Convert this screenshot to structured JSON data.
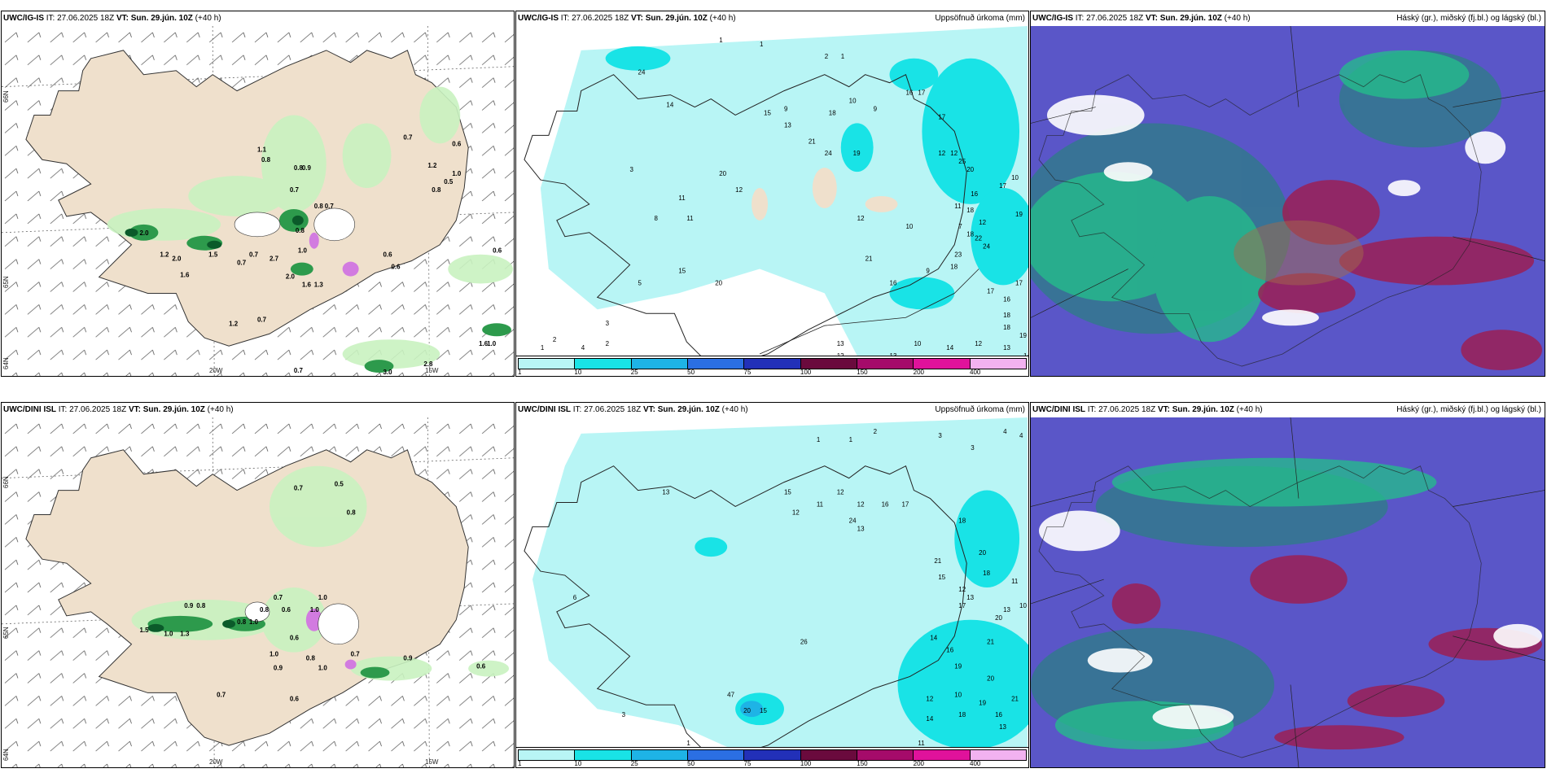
{
  "panels": [
    {
      "id": "top-left",
      "model": "UWC/IG-IS",
      "it_label": "IT:",
      "it": "27.06.2025 18Z",
      "vt_label": "VT:",
      "vt": "Sun. 29.jún. 10Z",
      "lead": "(+40 h)",
      "right": ""
    },
    {
      "id": "top-mid",
      "model": "UWC/IG-IS",
      "it_label": "IT:",
      "it": "27.06.2025 18Z",
      "vt_label": "VT:",
      "vt": "Sun. 29.jún. 10Z",
      "lead": "(+40 h)",
      "right": "Uppsöfnuð úrkoma (mm)"
    },
    {
      "id": "top-right",
      "model": "UWC/IG-IS",
      "it_label": "IT:",
      "it": "27.06.2025 18Z",
      "vt_label": "VT:",
      "vt": "Sun. 29.jún. 10Z",
      "lead": "(+40 h)",
      "right": "Háský (gr.), miðský (fj.bl.) og lágský (bl.)"
    },
    {
      "id": "bottom-left",
      "model": "UWC/DINI ISL",
      "it_label": "IT:",
      "it": "27.06.2025 18Z",
      "vt_label": "VT:",
      "vt": "Sun. 29.jún. 10Z",
      "lead": "(+40 h)",
      "right": ""
    },
    {
      "id": "bottom-mid",
      "model": "UWC/DINI ISL",
      "it_label": "IT:",
      "it": "27.06.2025 18Z",
      "vt_label": "VT:",
      "vt": "Sun. 29.jún. 10Z",
      "lead": "(+40 h)",
      "right": "Uppsöfnuð úrkoma (mm)"
    },
    {
      "id": "bottom-right",
      "model": "UWC/DINI ISL",
      "it_label": "IT:",
      "it": "27.06.2025 18Z",
      "vt_label": "VT:",
      "vt": "Sun. 29.jún. 10Z",
      "lead": "(+40 h)",
      "right": "Háský (gr.), miðský (fj.bl.) og lágský (bl.)"
    }
  ],
  "axes": {
    "lon_20": "20W",
    "lon_15": "15W",
    "lat_66": "66N",
    "lat_65": "65N",
    "lat_64": "64N"
  },
  "legend": {
    "colors": [
      "#b8f5f5",
      "#19e3e6",
      "#1eb3e6",
      "#2b6fe3",
      "#2230b8",
      "#6a0a3d",
      "#a50b6a",
      "#e0129b",
      "#f2b2f0"
    ],
    "ticks": [
      "1",
      "10",
      "25",
      "50",
      "75",
      "100",
      "150",
      "200",
      "400"
    ]
  },
  "labels": {
    "top_left": [
      "1.1",
      "0.8",
      "0.8",
      "0.9",
      "0.7",
      "0.8",
      "0.7",
      "0.7",
      "0.6",
      "1.2",
      "0.8",
      "1.0",
      "0.5",
      "2.0",
      "1.2",
      "2.0",
      "1.6",
      "1.5",
      "0.7",
      "0.7",
      "2.7",
      "0.8",
      "1.0",
      "0.6",
      "0.6",
      "1.6",
      "1.3",
      "2.0",
      "1.2",
      "0.7",
      "0.6",
      "1.6",
      "1.0",
      "0.7",
      "3.0",
      "2.8"
    ],
    "top_mid": [
      "1",
      "1",
      "2",
      "1",
      "24",
      "14",
      "3",
      "15",
      "9",
      "13",
      "18",
      "10",
      "9",
      "16",
      "17",
      "17",
      "20",
      "12",
      "11",
      "21",
      "24",
      "19",
      "12",
      "12",
      "25",
      "20",
      "12",
      "16",
      "11",
      "10",
      "11",
      "17",
      "19",
      "10",
      "18",
      "12",
      "18",
      "22",
      "24",
      "7",
      "23",
      "18",
      "9",
      "16",
      "21",
      "20",
      "15",
      "17",
      "16",
      "17",
      "18",
      "18",
      "19",
      "14",
      "12",
      "13",
      "13",
      "10",
      "12",
      "13",
      "14",
      "8",
      "5",
      "3",
      "4",
      "2",
      "2",
      "1"
    ],
    "bottom_left": [
      "0.7",
      "0.5",
      "0.8",
      "0.9",
      "0.8",
      "0.7",
      "1.0",
      "1.0",
      "0.8",
      "0.6",
      "0.8",
      "1.0",
      "1.0",
      "0.9",
      "1.0",
      "0.7",
      "0.6",
      "0.7",
      "0.9",
      "0.6",
      "0.6",
      "0.8",
      "1.5",
      "1.0",
      "1.3"
    ],
    "bottom_mid": [
      "1",
      "1",
      "2",
      "3",
      "3",
      "4",
      "4",
      "13",
      "15",
      "12",
      "11",
      "12",
      "12",
      "16",
      "17",
      "18",
      "24",
      "13",
      "21",
      "20",
      "18",
      "15",
      "12",
      "13",
      "11",
      "20",
      "17",
      "13",
      "10",
      "14",
      "16",
      "19",
      "21",
      "20",
      "26",
      "47",
      "20",
      "15",
      "12",
      "10",
      "18",
      "14",
      "16",
      "13",
      "21",
      "19",
      "11",
      "6",
      "3",
      "1"
    ]
  }
}
